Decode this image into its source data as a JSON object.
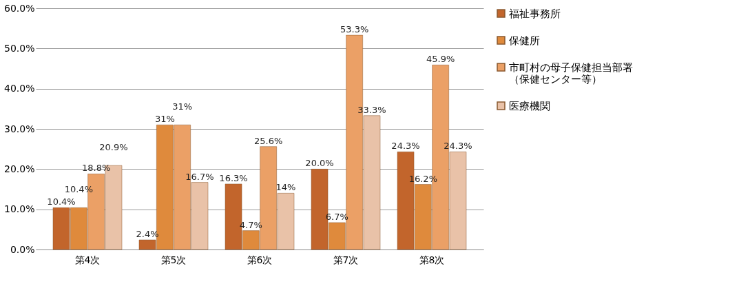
{
  "chart_data": {
    "type": "bar",
    "categories": [
      "第4次",
      "第5次",
      "第6次",
      "第7次",
      "第8次"
    ],
    "series": [
      {
        "name": "福祉事務所",
        "color": "#c2652c",
        "values": [
          10.4,
          2.4,
          16.3,
          20.0,
          24.3
        ],
        "value_labels": [
          "10.4%",
          "2.4%",
          "16.3%",
          "20.0%",
          "24.3%"
        ]
      },
      {
        "name": "保健所",
        "color": "#df8a3c",
        "values": [
          10.4,
          31,
          4.7,
          6.7,
          16.2
        ],
        "value_labels": [
          "10.4%",
          "31%",
          "4.7%",
          "6.7%",
          "16.2%"
        ]
      },
      {
        "name": "市町村の母子保健担当部署（保健センター等）",
        "color": "#eba066",
        "values": [
          18.8,
          31,
          25.6,
          53.3,
          45.9
        ],
        "value_labels": [
          "18.8%",
          "31%",
          "25.6%",
          "53.3%",
          "45.9%"
        ]
      },
      {
        "name": "医療機関",
        "color": "#e9c2a8",
        "values": [
          20.9,
          16.7,
          14,
          33.3,
          24.3
        ],
        "value_labels": [
          "20.9%",
          "16.7%",
          "14%",
          "33.3%",
          "24.3%"
        ]
      }
    ],
    "ylim": [
      0,
      60
    ],
    "yticks": [
      {
        "value": 0,
        "label": "0.0%"
      },
      {
        "value": 10,
        "label": "10.0%"
      },
      {
        "value": 20,
        "label": "20.0%"
      },
      {
        "value": 30,
        "label": "30.0%"
      },
      {
        "value": 40,
        "label": "40.0%"
      },
      {
        "value": 50,
        "label": "50.0%"
      },
      {
        "value": 60,
        "label": "60.0%"
      }
    ],
    "grid": "y",
    "legend": "right"
  }
}
